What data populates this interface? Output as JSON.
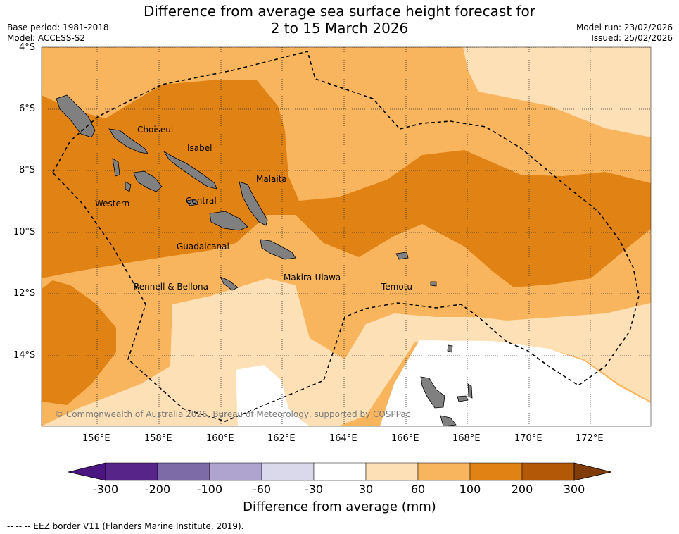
{
  "header": {
    "title_line1": "Difference from average sea surface height forecast for",
    "title_line2": "2 to 15 March 2026",
    "base_period": "Base period: 1981-2018",
    "model": "Model: ACCESS-S2",
    "model_run": "Model run: 23/02/2026",
    "issued": "Issued: 25/02/2026"
  },
  "axes": {
    "lat_labels": [
      "4°S",
      "6°S",
      "8°S",
      "10°S",
      "12°S",
      "14°S"
    ],
    "lon_labels": [
      "156°E",
      "158°E",
      "160°E",
      "162°E",
      "164°E",
      "166°E",
      "168°E",
      "170°E",
      "172°E"
    ]
  },
  "regions": [
    "Choiseul",
    "Isabel",
    "Malaita",
    "Western",
    "Central",
    "Guadalcanal",
    "Makira-Ulawa",
    "Rennell & Bellona",
    "Temotu"
  ],
  "copyright": "© Commonwealth of Australia 2026, Bureau of Meteorology, supported by COSPPac",
  "colorbar": {
    "ticks": [
      "-300",
      "-200",
      "-100",
      "-60",
      "-30",
      "30",
      "60",
      "100",
      "200",
      "300"
    ],
    "colors": [
      "#4a1580",
      "#572489",
      "#7d6ba8",
      "#aea4cf",
      "#d9d9eb",
      "#ffffff",
      "#fde0b6",
      "#f9b55e",
      "#e08314",
      "#b35806",
      "#7f3b08"
    ],
    "label": "Difference from average (mm)"
  },
  "footnote": "--  --  -- EEZ border V11 (Flanders Marine Institute, 2019)."
}
